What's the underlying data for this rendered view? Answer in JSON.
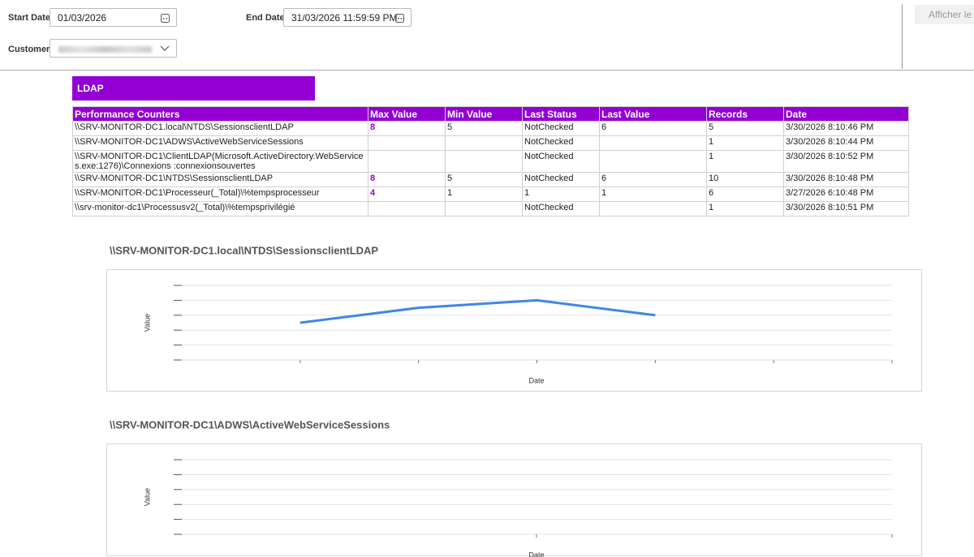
{
  "filters": {
    "start_date_label": "Start Date",
    "start_date": "01/03/2026",
    "end_date_label": "End Date",
    "end_date": "31/03/2026 11:59:59 PM",
    "customer_label": "Customer",
    "button": "Afficher le"
  },
  "section_title": "LDAP",
  "table": {
    "columns": [
      "Performance Counters",
      "Max Value",
      "Min Value",
      "Last Status",
      "Last Value",
      "Records",
      "Date"
    ],
    "rows": [
      [
        "\\\\SRV-MONITOR-DC1.local\\NTDS\\SessionsclientLDAP",
        8,
        5,
        "NotChecked",
        6,
        5,
        "3/30/2026 8:10:46 PM"
      ],
      [
        "\\\\SRV-MONITOR-DC1\\ADWS\\ActiveWebServiceSessions",
        null,
        null,
        "NotChecked",
        null,
        1,
        "3/30/2026 8:10:44 PM"
      ],
      [
        "\\\\SRV-MONITOR-DC1\\ClientLDAP(Microsoft.ActiveDirectory.WebServices.exe:1276)\\Connexions :connexionsouvertes",
        null,
        null,
        "NotChecked",
        null,
        1,
        "3/30/2026 8:10:52 PM"
      ],
      [
        "\\\\SRV-MONITOR-DC1\\NTDS\\SessionsclientLDAP",
        8,
        5,
        "NotChecked",
        6,
        10,
        "3/30/2026 8:10:48 PM"
      ],
      [
        "\\\\SRV-MONITOR-DC1\\Processeur(_Total)\\%tempsprocesseur",
        4,
        1,
        1,
        1,
        6,
        "3/27/2026 6:10:48 PM"
      ],
      [
        "\\\\srv-monitor-dc1\\Processusv2(_Total)\\%tempsprivilégié",
        null,
        null,
        "NotChecked",
        null,
        1,
        "3/30/2026 8:10:51 PM"
      ]
    ]
  },
  "chart_data": [
    {
      "type": "line",
      "title": "\\\\SRV-MONITOR-DC1.local\\NTDS\\SessionsclientLDAP",
      "x_label": "Date",
      "y_label": "Value",
      "categories": [
        null,
        null,
        null,
        null,
        null,
        null
      ],
      "series": [
        {
          "color": "#3f87e5",
          "values": [
            5,
            7,
            8,
            6,
            null,
            null
          ]
        }
      ],
      "ylim": [
        0,
        10
      ],
      "yticks": [
        0,
        2,
        4,
        6,
        8,
        10
      ],
      "grid": true
    },
    {
      "type": "line",
      "title": "\\\\SRV-MONITOR-DC1\\ADWS\\ActiveWebServiceSessions",
      "x_label": "Date",
      "y_label": "Value",
      "series": [],
      "ylim": [
        0,
        10
      ],
      "yticks": [
        0,
        2,
        4,
        6,
        8,
        10
      ],
      "grid": true
    }
  ]
}
